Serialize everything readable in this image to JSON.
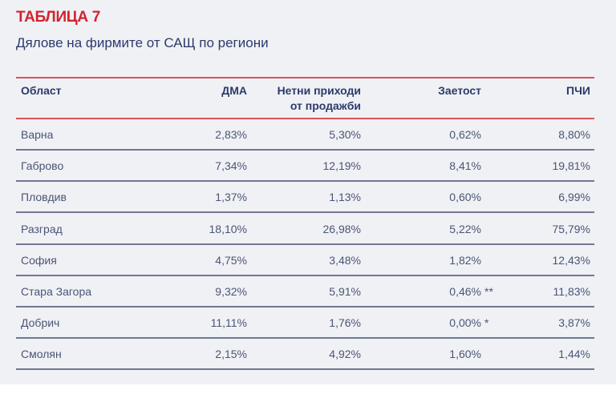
{
  "title": "ТАБЛИЦА 7",
  "subtitle": "Дялове на фирмите от САЩ по региони",
  "columns": [
    "Област",
    "ДМА",
    "Нетни приходи",
    "от продажби",
    "Заетост",
    "ПЧИ"
  ],
  "rows": [
    {
      "region": "Варна",
      "dma": "2,83%",
      "sales": "5,30%",
      "employment": "0,62%",
      "note": "",
      "fdi": "8,80%"
    },
    {
      "region": "Габрово",
      "dma": "7,34%",
      "sales": "12,19%",
      "employment": "8,41%",
      "note": "",
      "fdi": "19,81%"
    },
    {
      "region": "Пловдив",
      "dma": "1,37%",
      "sales": "1,13%",
      "employment": "0,60%",
      "note": "",
      "fdi": "6,99%"
    },
    {
      "region": "Разград",
      "dma": "18,10%",
      "sales": "26,98%",
      "employment": "5,22%",
      "note": "",
      "fdi": "75,79%"
    },
    {
      "region": "София",
      "dma": "4,75%",
      "sales": "3,48%",
      "employment": "1,82%",
      "note": "",
      "fdi": "12,43%"
    },
    {
      "region": "Стара Загора",
      "dma": "9,32%",
      "sales": "5,91%",
      "employment": "0,46%",
      "note": "**",
      "fdi": "11,83%"
    },
    {
      "region": "Добрич",
      "dma": "11,11%",
      "sales": "1,76%",
      "employment": "0,00%",
      "note": "*",
      "fdi": "3,87%"
    },
    {
      "region": "Смолян",
      "dma": "2,15%",
      "sales": "4,92%",
      "employment": "1,60%",
      "note": "",
      "fdi": "1,44%"
    }
  ],
  "colors": {
    "accent": "#d3232f",
    "text": "#2c3a6c"
  }
}
